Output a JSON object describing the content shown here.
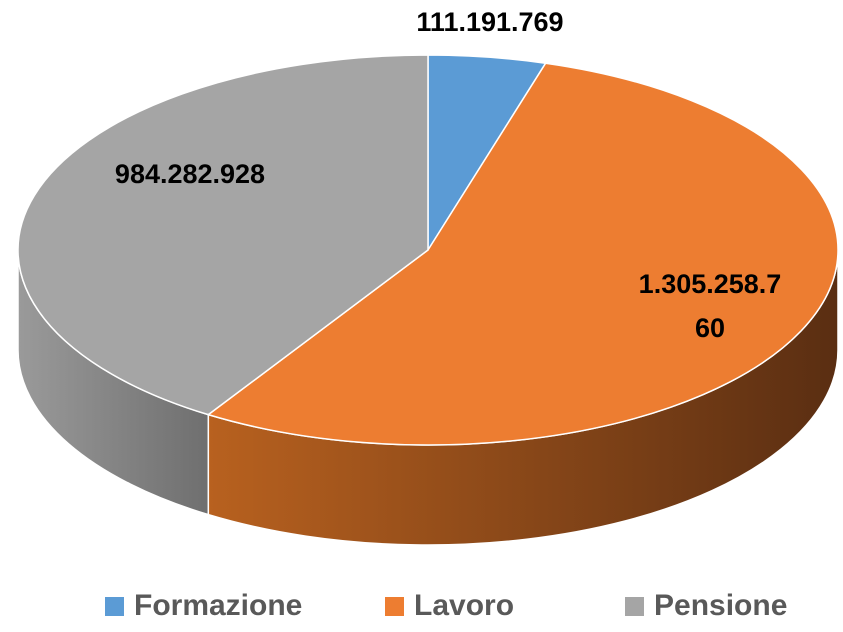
{
  "chart_data": {
    "type": "pie3d",
    "categories": [
      "Formazione",
      "Lavoro",
      "Pensione"
    ],
    "values": [
      111191769,
      1305258760,
      984282928
    ],
    "value_labels": [
      "111.191.769",
      "1.305.258.760",
      "984.282.928"
    ],
    "colors": [
      "#5b9bd5",
      "#ed7d31",
      "#a5a5a5"
    ],
    "legend": "bottom"
  }
}
